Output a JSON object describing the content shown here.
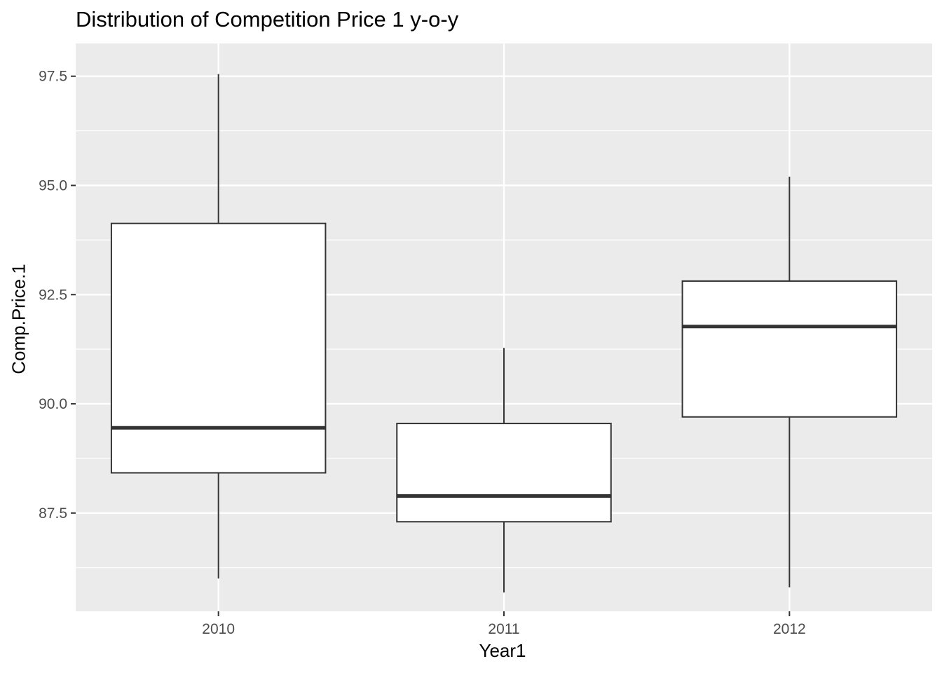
{
  "chart_data": {
    "type": "boxplot",
    "title": "Distribution of Competition Price 1 y-o-y",
    "xlabel": "Year1",
    "ylabel": "Comp.Price.1",
    "categories": [
      "2010",
      "2011",
      "2012"
    ],
    "boxes": [
      {
        "category": "2010",
        "min": 86.0,
        "q1": 88.42,
        "median": 89.45,
        "q3": 94.13,
        "max": 97.55
      },
      {
        "category": "2011",
        "min": 85.68,
        "q1": 87.3,
        "median": 87.89,
        "q3": 89.55,
        "max": 91.28
      },
      {
        "category": "2012",
        "min": 85.8,
        "q1": 89.7,
        "median": 91.77,
        "q3": 92.81,
        "max": 95.2
      }
    ],
    "yticks": [
      87.5,
      90.0,
      92.5,
      95.0,
      97.5
    ],
    "ytick_labels": [
      "87.5",
      "90.0",
      "92.5",
      "95.0",
      "97.5"
    ],
    "ylim": [
      85.25,
      98.25
    ],
    "grid": true,
    "panel_color": "#ebebeb",
    "grid_color": "#ffffff",
    "box_fill": "#ffffff",
    "box_stroke": "#333333"
  }
}
